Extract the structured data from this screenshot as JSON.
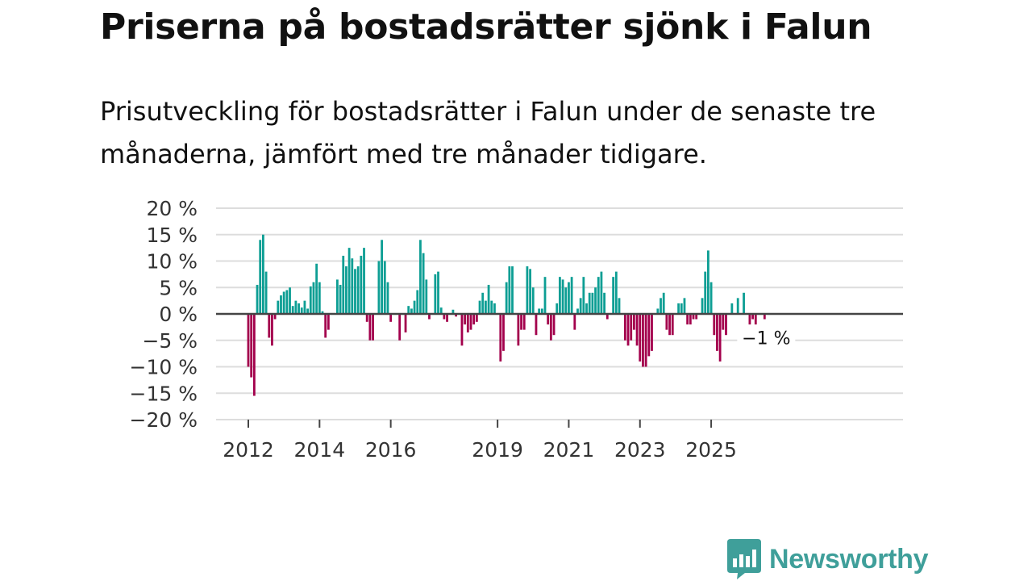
{
  "title": "Priserna på bostadsrätter sjönk i Falun",
  "subtitle": "Prisutveckling för bostadsrätter i Falun under de senaste tre månaderna, jämfört med tre månader tidigare.",
  "brand": {
    "name": "Newsworthy",
    "color": "#3f9f9a",
    "icon": "bar-chart-speech-bubble-icon"
  },
  "colors": {
    "positive": "#0d9e94",
    "negative": "#a3004c",
    "zero_line": "#444444",
    "grid": "#dddddd"
  },
  "chart_data": {
    "type": "bar",
    "title": "",
    "xlabel": "",
    "ylabel": "",
    "ylim": [
      -20,
      20
    ],
    "y_ticks": [
      20,
      15,
      10,
      5,
      0,
      -5,
      -10,
      -15,
      -20
    ],
    "y_tick_labels": [
      "20 %",
      "15 %",
      "10 %",
      "5 %",
      "0 %",
      "−5 %",
      "−10 %",
      "−15 %",
      "−20 %"
    ],
    "x_ticks": [
      {
        "label": "2012",
        "year": 2012
      },
      {
        "label": "2014",
        "year": 2014
      },
      {
        "label": "2016",
        "year": 2016
      },
      {
        "label": "2019",
        "year": 2019
      },
      {
        "label": "2021",
        "year": 2021
      },
      {
        "label": "2023",
        "year": 2023
      },
      {
        "label": "2025",
        "year": 2025
      }
    ],
    "start": "2012-01",
    "unit": "%",
    "values": [
      -10,
      -12,
      -15.5,
      5.5,
      14,
      15,
      8,
      -4.5,
      -6,
      -1,
      2.5,
      3.5,
      4.2,
      4.5,
      5,
      1.5,
      2.5,
      2,
      1.2,
      2.5,
      1,
      5.2,
      6,
      9.5,
      6,
      0.5,
      -4.5,
      -3,
      0,
      0,
      6.5,
      5.5,
      11,
      9,
      12.5,
      10.5,
      8.5,
      9,
      11,
      12.5,
      -1.5,
      -5,
      -5,
      0,
      10,
      14,
      10,
      6,
      -1.5,
      0,
      0,
      -5,
      0,
      -3.5,
      1.5,
      1,
      2.5,
      4.5,
      14,
      11.5,
      6.5,
      -1,
      0,
      7.5,
      8,
      1.2,
      -1,
      -1.5,
      0,
      0.8,
      -0.5,
      0,
      -6,
      -2,
      -3.5,
      -3,
      -2,
      -1.5,
      2.5,
      4,
      2.5,
      5.5,
      2.5,
      2,
      0,
      -9,
      -7,
      6,
      9,
      9,
      0,
      -6,
      -3,
      -3,
      9,
      8.5,
      5,
      -4,
      1,
      1,
      7,
      -2,
      -5,
      -4,
      2,
      7,
      6.5,
      5,
      6,
      7,
      -3,
      1,
      3,
      7,
      2,
      4,
      4,
      5,
      7,
      8,
      4,
      -1,
      0,
      7,
      8,
      3,
      0,
      -5,
      -6,
      -5,
      -3,
      -6,
      -9,
      -10,
      -10,
      -8,
      -7,
      0,
      1,
      3,
      4,
      -3,
      -4,
      -4,
      0,
      2,
      2,
      3,
      -2,
      -2,
      -1,
      -1,
      0,
      3,
      8,
      12,
      6,
      -4,
      -7,
      -9,
      -3,
      -4,
      0,
      2,
      0,
      3,
      0,
      4,
      0,
      -2,
      -1,
      -2,
      0,
      0,
      -1
    ],
    "annotation": {
      "label": "−1 %",
      "value": -1,
      "point": "last"
    },
    "legend": "none"
  }
}
